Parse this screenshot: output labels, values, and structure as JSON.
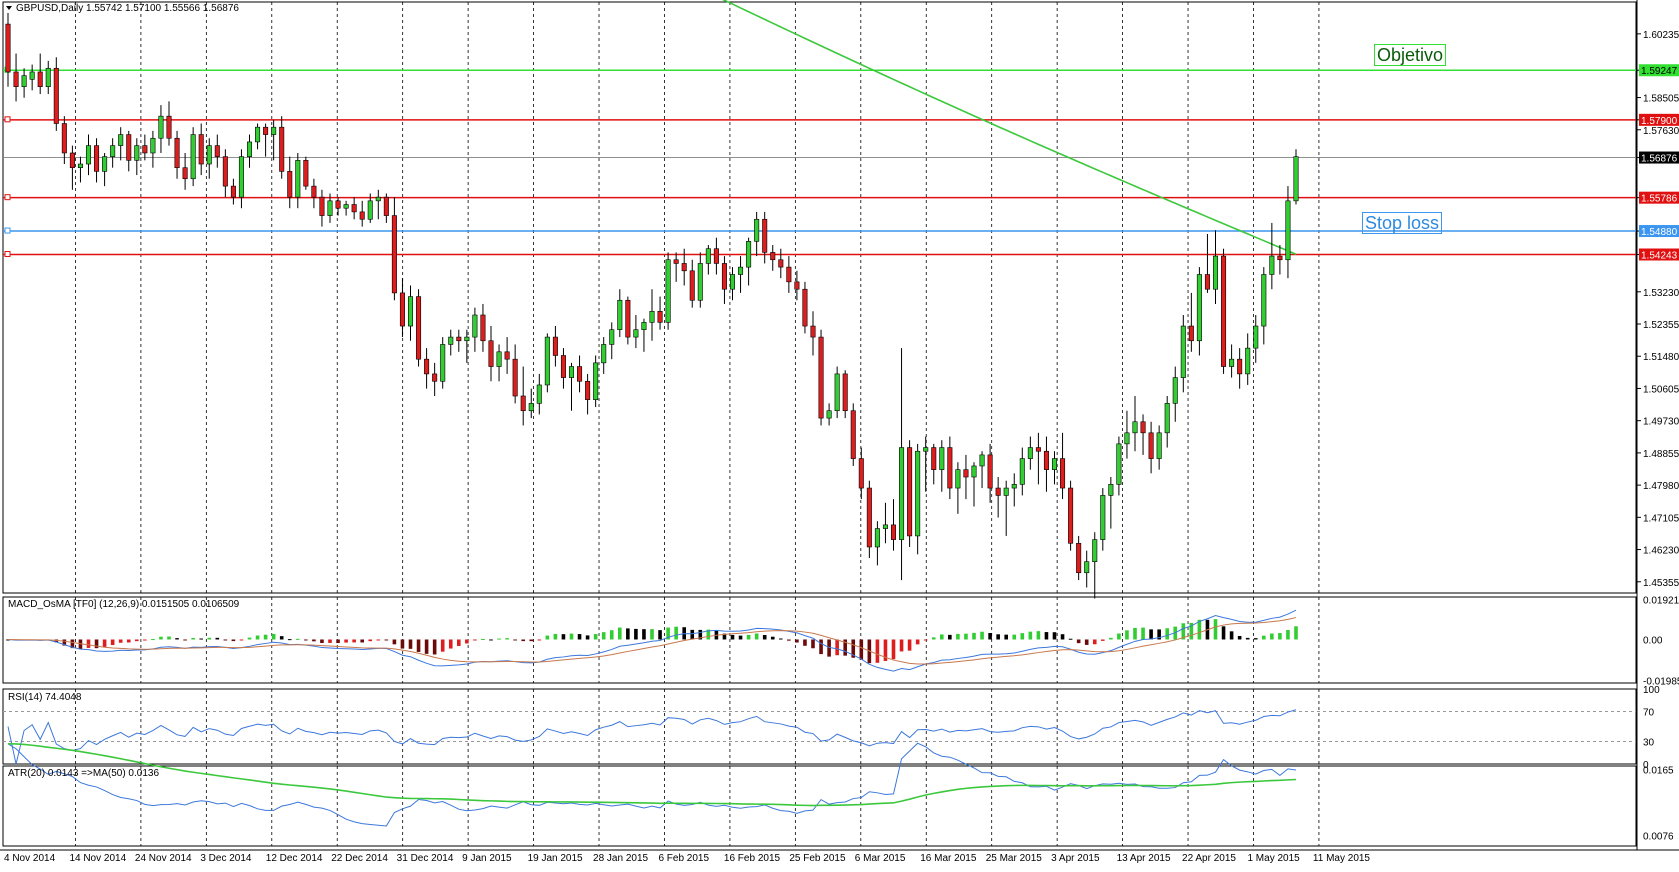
{
  "window": {
    "symbol_header": "GBPUSD,Daily  1.55742 1.57100 1.55566 1.56876",
    "menu_icon": "triangle-down-icon"
  },
  "colors": {
    "bull": "#32cd32",
    "bear": "#dc1e1e",
    "black_bar": "#000000",
    "ma": "#3cc83c",
    "level_red": "#e01010",
    "level_green": "#32e032",
    "level_blue": "#3c96f0",
    "macd_line": "#3c78dc",
    "signal_line": "#c8784c",
    "rsi_line": "#3c78dc",
    "atr_line": "#3c78dc",
    "atr_ma": "#3cc83c"
  },
  "chart_data": [
    {
      "type": "candlestick",
      "title": "GBPUSD,Daily",
      "header_values": {
        "open": 1.55742,
        "high": 1.571,
        "low": 1.55566,
        "close": 1.56876
      },
      "ylim": [
        1.4505,
        1.611
      ],
      "y_ticks": [
        "1.60235",
        "1.59247",
        "1.58505",
        "1.57900",
        "1.57630",
        "1.56876",
        "1.55786",
        "1.54880",
        "1.54243",
        "1.53230",
        "1.52355",
        "1.51480",
        "1.50605",
        "1.49730",
        "1.48855",
        "1.47980",
        "1.47105",
        "1.46230",
        "1.45355"
      ],
      "highlighted_ticks": [
        {
          "value": "1.59247",
          "kind": "green"
        },
        {
          "value": "1.57900",
          "kind": "red"
        },
        {
          "value": "1.56876",
          "kind": "black"
        },
        {
          "value": "1.55786",
          "kind": "red"
        },
        {
          "value": "1.54880",
          "kind": "blue"
        },
        {
          "value": "1.54243",
          "kind": "red"
        }
      ],
      "x_labels": [
        "4 Nov 2014",
        "14 Nov 2014",
        "24 Nov 2014",
        "3 Dec 2014",
        "12 Dec 2014",
        "22 Dec 2014",
        "31 Dec 2014",
        "9 Jan 2015",
        "19 Jan 2015",
        "28 Jan 2015",
        "6 Feb 2015",
        "16 Feb 2015",
        "25 Feb 2015",
        "6 Mar 2015",
        "16 Mar 2015",
        "25 Mar 2015",
        "3 Apr 2015",
        "13 Apr 2015",
        "22 Apr 2015",
        "1 May 2015",
        "11 May 2015"
      ],
      "levels": [
        {
          "value": 1.59247,
          "kind": "green",
          "label": "Objetivo"
        },
        {
          "value": 1.579,
          "kind": "red"
        },
        {
          "value": 1.56876,
          "kind": "gray"
        },
        {
          "value": 1.55786,
          "kind": "red"
        },
        {
          "value": 1.5488,
          "kind": "blue",
          "label": "Stop loss"
        },
        {
          "value": 1.54243,
          "kind": "red"
        }
      ],
      "candles": [
        [
          1.605,
          1.608,
          1.588,
          1.592
        ],
        [
          1.592,
          1.597,
          1.584,
          1.588
        ],
        [
          1.588,
          1.593,
          1.585,
          1.591
        ],
        [
          1.59,
          1.594,
          1.587,
          1.592
        ],
        [
          1.592,
          1.597,
          1.586,
          1.588
        ],
        [
          1.588,
          1.595,
          1.586,
          1.593
        ],
        [
          1.593,
          1.596,
          1.576,
          1.578
        ],
        [
          1.578,
          1.58,
          1.567,
          1.57
        ],
        [
          1.57,
          1.572,
          1.56,
          1.566
        ],
        [
          1.566,
          1.569,
          1.562,
          1.567
        ],
        [
          1.567,
          1.575,
          1.564,
          1.572
        ],
        [
          1.572,
          1.574,
          1.562,
          1.565
        ],
        [
          1.565,
          1.57,
          1.561,
          1.569
        ],
        [
          1.569,
          1.574,
          1.566,
          1.572
        ],
        [
          1.572,
          1.577,
          1.568,
          1.575
        ],
        [
          1.575,
          1.576,
          1.565,
          1.568
        ],
        [
          1.568,
          1.574,
          1.564,
          1.572
        ],
        [
          1.572,
          1.575,
          1.568,
          1.57
        ],
        [
          1.57,
          1.576,
          1.566,
          1.574
        ],
        [
          1.574,
          1.583,
          1.57,
          1.58
        ],
        [
          1.58,
          1.584,
          1.572,
          1.574
        ],
        [
          1.574,
          1.576,
          1.563,
          1.566
        ],
        [
          1.566,
          1.57,
          1.56,
          1.563
        ],
        [
          1.563,
          1.577,
          1.561,
          1.575
        ],
        [
          1.575,
          1.578,
          1.564,
          1.567
        ],
        [
          1.567,
          1.574,
          1.563,
          1.572
        ],
        [
          1.572,
          1.575,
          1.566,
          1.569
        ],
        [
          1.569,
          1.571,
          1.558,
          1.561
        ],
        [
          1.561,
          1.563,
          1.556,
          1.558
        ],
        [
          1.558,
          1.571,
          1.555,
          1.569
        ],
        [
          1.569,
          1.575,
          1.566,
          1.573
        ],
        [
          1.573,
          1.578,
          1.571,
          1.577
        ],
        [
          1.577,
          1.578,
          1.569,
          1.575
        ],
        [
          1.575,
          1.579,
          1.568,
          1.577
        ],
        [
          1.577,
          1.58,
          1.563,
          1.565
        ],
        [
          1.565,
          1.569,
          1.555,
          1.558
        ],
        [
          1.558,
          1.57,
          1.555,
          1.568
        ],
        [
          1.568,
          1.569,
          1.56,
          1.561
        ],
        [
          1.561,
          1.563,
          1.555,
          1.558
        ],
        [
          1.558,
          1.56,
          1.55,
          1.553
        ],
        [
          1.553,
          1.559,
          1.551,
          1.557
        ],
        [
          1.557,
          1.558,
          1.553,
          1.555
        ],
        [
          1.555,
          1.557,
          1.553,
          1.556
        ],
        [
          1.556,
          1.558,
          1.552,
          1.554
        ],
        [
          1.554,
          1.557,
          1.55,
          1.552
        ],
        [
          1.552,
          1.559,
          1.551,
          1.557
        ],
        [
          1.557,
          1.56,
          1.552,
          1.558
        ],
        [
          1.558,
          1.559,
          1.551,
          1.553
        ],
        [
          1.553,
          1.558,
          1.53,
          1.532
        ],
        [
          1.532,
          1.536,
          1.52,
          1.523
        ],
        [
          1.523,
          1.534,
          1.519,
          1.531
        ],
        [
          1.531,
          1.533,
          1.512,
          1.514
        ],
        [
          1.514,
          1.517,
          1.506,
          1.51
        ],
        [
          1.51,
          1.513,
          1.504,
          1.508
        ],
        [
          1.508,
          1.52,
          1.506,
          1.518
        ],
        [
          1.518,
          1.522,
          1.515,
          1.52
        ],
        [
          1.52,
          1.522,
          1.516,
          1.519
        ],
        [
          1.519,
          1.522,
          1.513,
          1.52
        ],
        [
          1.52,
          1.528,
          1.516,
          1.526
        ],
        [
          1.526,
          1.529,
          1.516,
          1.519
        ],
        [
          1.519,
          1.523,
          1.508,
          1.512
        ],
        [
          1.512,
          1.518,
          1.508,
          1.516
        ],
        [
          1.516,
          1.52,
          1.51,
          1.514
        ],
        [
          1.514,
          1.518,
          1.502,
          1.504
        ],
        [
          1.504,
          1.512,
          1.496,
          1.5
        ],
        [
          1.5,
          1.506,
          1.498,
          1.502
        ],
        [
          1.502,
          1.51,
          1.499,
          1.507
        ],
        [
          1.507,
          1.521,
          1.505,
          1.52
        ],
        [
          1.52,
          1.523,
          1.512,
          1.515
        ],
        [
          1.515,
          1.517,
          1.506,
          1.509
        ],
        [
          1.509,
          1.513,
          1.5,
          1.512
        ],
        [
          1.512,
          1.515,
          1.505,
          1.508
        ],
        [
          1.508,
          1.51,
          1.499,
          1.503
        ],
        [
          1.503,
          1.515,
          1.501,
          1.513
        ],
        [
          1.513,
          1.52,
          1.51,
          1.518
        ],
        [
          1.518,
          1.524,
          1.514,
          1.522
        ],
        [
          1.522,
          1.533,
          1.52,
          1.53
        ],
        [
          1.53,
          1.531,
          1.518,
          1.52
        ],
        [
          1.52,
          1.526,
          1.517,
          1.522
        ],
        [
          1.522,
          1.525,
          1.516,
          1.524
        ],
        [
          1.524,
          1.533,
          1.519,
          1.527
        ],
        [
          1.527,
          1.531,
          1.522,
          1.524
        ],
        [
          1.524,
          1.543,
          1.522,
          1.541
        ],
        [
          1.541,
          1.543,
          1.535,
          1.54
        ],
        [
          1.54,
          1.544,
          1.534,
          1.538
        ],
        [
          1.538,
          1.541,
          1.528,
          1.53
        ],
        [
          1.53,
          1.543,
          1.528,
          1.54
        ],
        [
          1.54,
          1.545,
          1.537,
          1.544
        ],
        [
          1.544,
          1.547,
          1.537,
          1.54
        ],
        [
          1.54,
          1.542,
          1.529,
          1.533
        ],
        [
          1.533,
          1.539,
          1.53,
          1.537
        ],
        [
          1.537,
          1.542,
          1.532,
          1.539
        ],
        [
          1.539,
          1.547,
          1.534,
          1.546
        ],
        [
          1.546,
          1.554,
          1.542,
          1.552
        ],
        [
          1.552,
          1.554,
          1.54,
          1.543
        ],
        [
          1.543,
          1.545,
          1.538,
          1.541
        ],
        [
          1.541,
          1.544,
          1.536,
          1.539
        ],
        [
          1.539,
          1.542,
          1.532,
          1.535
        ],
        [
          1.535,
          1.538,
          1.53,
          1.533
        ],
        [
          1.533,
          1.535,
          1.521,
          1.523
        ],
        [
          1.523,
          1.527,
          1.515,
          1.52
        ],
        [
          1.52,
          1.522,
          1.496,
          1.498
        ],
        [
          1.498,
          1.502,
          1.496,
          1.5
        ],
        [
          1.5,
          1.512,
          1.498,
          1.51
        ],
        [
          1.51,
          1.511,
          1.498,
          1.5
        ],
        [
          1.5,
          1.502,
          1.485,
          1.487
        ],
        [
          1.487,
          1.49,
          1.476,
          1.479
        ],
        [
          1.479,
          1.481,
          1.46,
          1.463
        ],
        [
          1.463,
          1.47,
          1.458,
          1.468
        ],
        [
          1.468,
          1.475,
          1.464,
          1.469
        ],
        [
          1.469,
          1.476,
          1.462,
          1.465
        ],
        [
          1.465,
          1.517,
          1.454,
          1.49
        ],
        [
          1.49,
          1.492,
          1.463,
          1.466
        ],
        [
          1.466,
          1.491,
          1.461,
          1.489
        ],
        [
          1.489,
          1.493,
          1.478,
          1.49
        ],
        [
          1.49,
          1.491,
          1.48,
          1.484
        ],
        [
          1.484,
          1.492,
          1.478,
          1.49
        ],
        [
          1.49,
          1.493,
          1.476,
          1.479
        ],
        [
          1.479,
          1.486,
          1.472,
          1.484
        ],
        [
          1.484,
          1.488,
          1.476,
          1.482
        ],
        [
          1.482,
          1.486,
          1.474,
          1.485
        ],
        [
          1.485,
          1.489,
          1.479,
          1.488
        ],
        [
          1.488,
          1.491,
          1.475,
          1.479
        ],
        [
          1.479,
          1.482,
          1.471,
          1.477
        ],
        [
          1.477,
          1.481,
          1.466,
          1.479
        ],
        [
          1.479,
          1.483,
          1.474,
          1.48
        ],
        [
          1.48,
          1.49,
          1.477,
          1.487
        ],
        [
          1.487,
          1.493,
          1.484,
          1.49
        ],
        [
          1.49,
          1.494,
          1.48,
          1.489
        ],
        [
          1.489,
          1.493,
          1.478,
          1.484
        ],
        [
          1.484,
          1.489,
          1.48,
          1.487
        ],
        [
          1.487,
          1.494,
          1.476,
          1.479
        ],
        [
          1.479,
          1.481,
          1.462,
          1.464
        ],
        [
          1.464,
          1.466,
          1.454,
          1.456
        ],
        [
          1.456,
          1.462,
          1.452,
          1.459
        ],
        [
          1.459,
          1.467,
          1.449,
          1.465
        ],
        [
          1.465,
          1.479,
          1.462,
          1.477
        ],
        [
          1.477,
          1.482,
          1.468,
          1.48
        ],
        [
          1.48,
          1.493,
          1.477,
          1.491
        ],
        [
          1.491,
          1.5,
          1.487,
          1.494
        ],
        [
          1.494,
          1.504,
          1.489,
          1.497
        ],
        [
          1.497,
          1.499,
          1.488,
          1.494
        ],
        [
          1.494,
          1.497,
          1.483,
          1.487
        ],
        [
          1.487,
          1.496,
          1.484,
          1.494
        ],
        [
          1.494,
          1.504,
          1.49,
          1.502
        ],
        [
          1.502,
          1.512,
          1.497,
          1.509
        ],
        [
          1.509,
          1.526,
          1.505,
          1.523
        ],
        [
          1.523,
          1.532,
          1.516,
          1.519
        ],
        [
          1.519,
          1.539,
          1.515,
          1.537
        ],
        [
          1.537,
          1.548,
          1.532,
          1.533
        ],
        [
          1.533,
          1.549,
          1.529,
          1.542
        ],
        [
          1.542,
          1.544,
          1.51,
          1.512
        ],
        [
          1.512,
          1.518,
          1.509,
          1.514
        ],
        [
          1.514,
          1.517,
          1.506,
          1.51
        ],
        [
          1.51,
          1.521,
          1.507,
          1.517
        ],
        [
          1.517,
          1.526,
          1.513,
          1.523
        ],
        [
          1.523,
          1.539,
          1.518,
          1.537
        ],
        [
          1.537,
          1.551,
          1.533,
          1.542
        ],
        [
          1.542,
          1.545,
          1.537,
          1.541
        ],
        [
          1.541,
          1.561,
          1.536,
          1.557
        ],
        [
          1.557,
          1.571,
          1.556,
          1.569
        ]
      ],
      "ma_series": [
        [
          1.6295,
          1.614
        ],
        [
          1.5995,
          1.597
        ],
        [
          1.5525,
          1.543
        ]
      ]
    },
    {
      "type": "histogram+line",
      "title": "MACD_OsMA [TF0] (12,26,9) 0.0151505 0.0106509",
      "y_ticks": [
        "0.019218",
        "0.00",
        "-0.019857"
      ],
      "ylim": [
        -0.021,
        0.0205
      ]
    },
    {
      "type": "line",
      "title": "RSI(14) 74.4048",
      "y_ticks": [
        "100",
        "70",
        "30",
        "0"
      ],
      "ylim": [
        0,
        100
      ],
      "levels": [
        70,
        30
      ]
    },
    {
      "type": "line",
      "title": "ATR(20) 0.0143  =>MA(50) 0.0136",
      "y_ticks": [
        "0.0165",
        "0.0076"
      ],
      "ylim": [
        0.0062,
        0.017
      ]
    }
  ]
}
